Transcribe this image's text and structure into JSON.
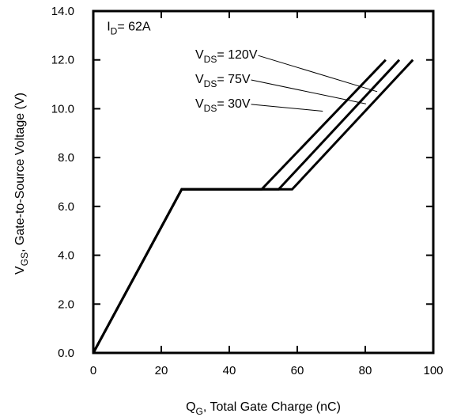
{
  "chart_data": {
    "type": "line",
    "xlabel": "Q",
    "xlabel_sub": "G",
    "xlabel_rest": ",  Total Gate Charge (nC)",
    "ylabel": "V",
    "ylabel_sub": "GS",
    "ylabel_rest": ", Gate-to-Source Voltage (V)",
    "xlim": [
      0,
      100
    ],
    "ylim": [
      0,
      14
    ],
    "x_ticks": [
      0,
      20,
      40,
      60,
      80,
      100
    ],
    "x_tick_labels": [
      "0",
      "20",
      "40",
      "60",
      "80",
      "100"
    ],
    "y_ticks": [
      0,
      2,
      4,
      6,
      8,
      10,
      12,
      14
    ],
    "y_tick_labels": [
      "0.0",
      "2.0",
      "4.0",
      "6.0",
      "8.0",
      "10.0",
      "12.0",
      "14.0"
    ],
    "grid": false,
    "series": [
      {
        "x": [
          0,
          26,
          58.5,
          94
        ],
        "y": [
          0,
          6.7,
          6.7,
          12
        ]
      },
      {
        "x": [
          0,
          26,
          54.5,
          90
        ],
        "y": [
          0,
          6.7,
          6.7,
          12
        ]
      },
      {
        "x": [
          0,
          26,
          49.5,
          86
        ],
        "y": [
          0,
          6.7,
          6.7,
          12
        ]
      }
    ],
    "annotations": [
      {
        "main": "I",
        "sub": "D",
        "rest": "= 62A",
        "x": 4,
        "y": 13.2
      },
      {
        "main": "V",
        "sub": "DS",
        "rest": "= 120V",
        "x": 30,
        "y": 12.05,
        "arrow_to": [
          83.5,
          10.7
        ]
      },
      {
        "main": "V",
        "sub": "DS",
        "rest": "= 75V",
        "x": 30,
        "y": 11.05,
        "arrow_to": [
          80.2,
          10.2
        ]
      },
      {
        "main": "V",
        "sub": "DS",
        "rest": "= 30V",
        "x": 30,
        "y": 10.05,
        "arrow_to": [
          67.5,
          9.9
        ]
      }
    ]
  }
}
